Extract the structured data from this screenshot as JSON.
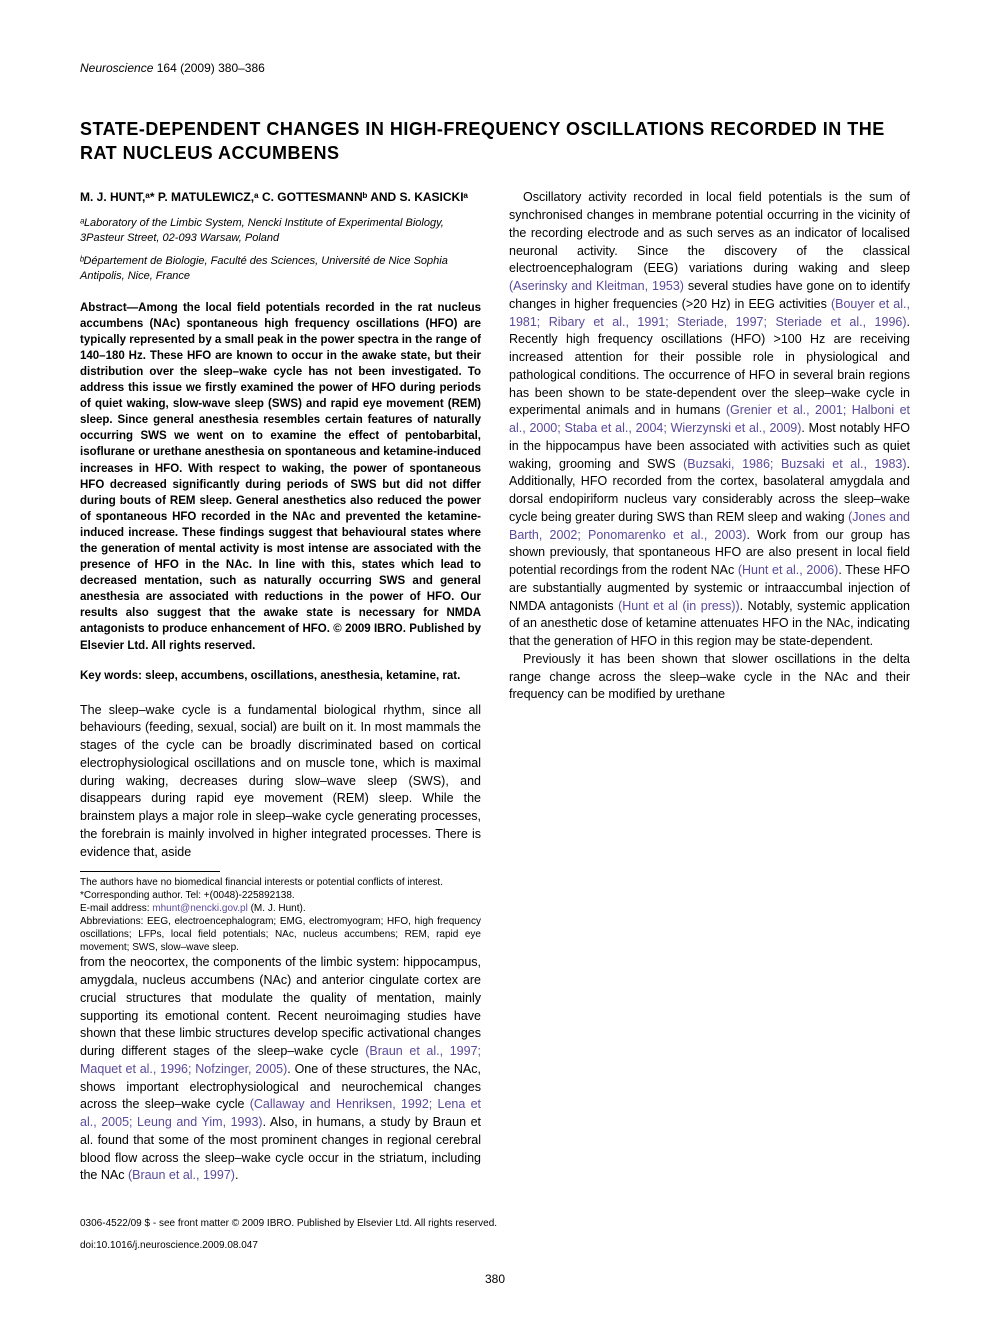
{
  "journal": {
    "name": "Neuroscience",
    "citation": "164 (2009) 380–386"
  },
  "title": "STATE-DEPENDENT CHANGES IN HIGH-FREQUENCY OSCILLATIONS RECORDED IN THE RAT NUCLEUS ACCUMBENS",
  "authors": "M. J. HUNT,ᵃ* P. MATULEWICZ,ᵃ C. GOTTESMANNᵇ AND S. KASICKIᵃ",
  "affiliations": [
    "ᵃLaboratory of the Limbic System, Nencki Institute of Experimental Biology, 3Pasteur Street, 02-093 Warsaw, Poland",
    "ᵇDépartement de Biologie, Faculté des Sciences, Université de Nice Sophia Antipolis, Nice, France"
  ],
  "abstract": "Abstract—Among the local field potentials recorded in the rat nucleus accumbens (NAc) spontaneous high frequency oscillations (HFO) are typically represented by a small peak in the power spectra in the range of 140–180 Hz. These HFO are known to occur in the awake state, but their distribution over the sleep–wake cycle has not been investigated. To address this issue we firstly examined the power of HFO during periods of quiet waking, slow-wave sleep (SWS) and rapid eye movement (REM) sleep. Since general anesthesia resembles certain features of naturally occurring SWS we went on to examine the effect of pentobarbital, isoflurane or urethane anesthesia on spontaneous and ketamine-induced increases in HFO. With respect to waking, the power of spontaneous HFO decreased significantly during periods of SWS but did not differ during bouts of REM sleep. General anesthetics also reduced the power of spontaneous HFO recorded in the NAc and prevented the ketamine-induced increase. These findings suggest that behavioural states where the generation of mental activity is most intense are associated with the presence of HFO in the NAc. In line with this, states which lead to decreased mentation, such as naturally occurring SWS and general anesthesia are associated with reductions in the power of HFO. Our results also suggest that the awake state is necessary for NMDA antagonists to produce enhancement of HFO. © 2009 IBRO. Published by Elsevier Ltd. All rights reserved.",
  "keywords": "Key words: sleep, accumbens, oscillations, anesthesia, ketamine, rat.",
  "body": {
    "p1": "The sleep–wake cycle is a fundamental biological rhythm, since all behaviours (feeding, sexual, social) are built on it. In most mammals the stages of the cycle can be broadly discriminated based on cortical electrophysiological oscillations and on muscle tone, which is maximal during waking, decreases during slow–wave sleep (SWS), and disappears during rapid eye movement (REM) sleep. While the brainstem plays a major role in sleep–wake cycle generating processes, the forebrain is mainly involved in higher integrated processes. There is evidence that, aside",
    "p2a": "from the neocortex, the components of the limbic system: hippocampus, amygdala, nucleus accumbens (NAc) and anterior cingulate cortex are crucial structures that modulate the quality of mentation, mainly supporting its emotional content. Recent neuroimaging studies have shown that these limbic structures develop specific activational changes during different stages of the sleep–wake cycle ",
    "p2_ref1": "(Braun et al., 1997; Maquet et al., 1996; Nofzinger, 2005)",
    "p2b": ". One of these structures, the NAc, shows important electrophysiological and neurochemical changes across the sleep–wake cycle ",
    "p2_ref2": "(Callaway and Henriksen, 1992; Lena et al., 2005; Leung and Yim, 1993)",
    "p2c": ". Also, in humans, a study by Braun et al. found that some of the most prominent changes in regional cerebral blood flow across the sleep–wake cycle occur in the striatum, including the NAc ",
    "p2_ref3": "(Braun et al., 1997)",
    "p2d": ".",
    "p3a": "Oscillatory activity recorded in local field potentials is the sum of synchronised changes in membrane potential occurring in the vicinity of the recording electrode and as such serves as an indicator of localised neuronal activity. Since the discovery of the classical electroencephalogram (EEG) variations during waking and sleep ",
    "p3_ref1": "(Aserinsky and Kleitman, 1953)",
    "p3b": " several studies have gone on to identify changes in higher frequencies (>20 Hz) in EEG activities ",
    "p3_ref2": "(Bouyer et al., 1981; Ribary et al., 1991; Steriade, 1997; Steriade et al., 1996)",
    "p3c": ". Recently high frequency oscillations (HFO) >100 Hz are receiving increased attention for their possible role in physiological and pathological conditions. The occurrence of HFO in several brain regions has been shown to be state-dependent over the sleep–wake cycle in experimental animals and in humans ",
    "p3_ref3": "(Grenier et al., 2001; Halboni et al., 2000; Staba et al., 2004; Wierzynski et al., 2009)",
    "p3d": ". Most notably HFO in the hippocampus have been associated with activities such as quiet waking, grooming and SWS ",
    "p3_ref4": "(Buzsaki, 1986; Buzsaki et al., 1983)",
    "p3e": ". Additionally, HFO recorded from the cortex, basolateral amygdala and dorsal endopiriform nucleus vary considerably across the sleep–wake cycle being greater during SWS than REM sleep and waking ",
    "p3_ref5": "(Jones and Barth, 2002; Ponomarenko et al., 2003)",
    "p3f": ". Work from our group has shown previously, that spontaneous HFO are also present in local field potential recordings from the rodent NAc ",
    "p3_ref6": "(Hunt et al., 2006)",
    "p3g": ". These HFO are substantially augmented by systemic or intraaccumbal injection of NMDA antagonists ",
    "p3_ref7": "(Hunt et al (in press))",
    "p3h": ". Notably, systemic application of an anesthetic dose of ketamine attenuates HFO in the NAc, indicating that the generation of HFO in this region may be state-dependent.",
    "p4": "Previously it has been shown that slower oscillations in the delta range change across the sleep–wake cycle in the NAc and their frequency can be modified by urethane"
  },
  "footnotes": {
    "conflict": "The authors have no biomedical financial interests or potential conflicts of interest.",
    "corresponding": "*Corresponding author. Tel: +(0048)-225892138.",
    "email_label": "E-mail address: ",
    "email": "mhunt@nencki.gov.pl",
    "email_after": " (M. J. Hunt).",
    "abbrev": "Abbreviations: EEG, electroencephalogram; EMG, electromyogram; HFO, high frequency oscillations; LFPs, local field potentials; NAc, nucleus accumbens; REM, rapid eye movement; SWS, slow–wave sleep."
  },
  "footer": {
    "copyright": "0306-4522/09 $ - see front matter © 2009 IBRO. Published by Elsevier Ltd. All rights reserved.",
    "doi": "doi:10.1016/j.neuroscience.2009.08.047"
  },
  "page_number": "380",
  "colors": {
    "link": "#5b4a99",
    "text": "#000000",
    "background": "#ffffff"
  }
}
